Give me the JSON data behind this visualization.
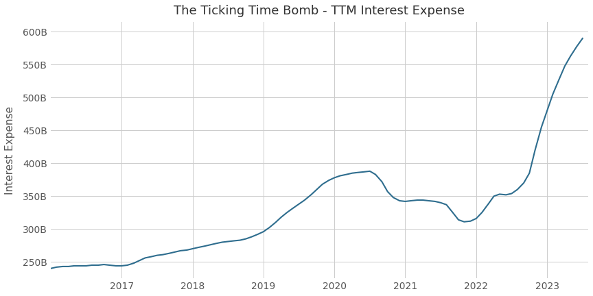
{
  "title": "The Ticking Time Bomb - TTM Interest Expense",
  "ylabel": "Interest Expense",
  "line_color": "#2e6d8e",
  "background_color": "#ffffff",
  "grid_color": "#cccccc",
  "ylim": [
    225000000000,
    615000000000
  ],
  "yticks": [
    250000000000,
    300000000000,
    350000000000,
    400000000000,
    450000000000,
    500000000000,
    550000000000,
    600000000000
  ],
  "x_values": [
    2016.0,
    2016.08,
    2016.17,
    2016.25,
    2016.33,
    2016.42,
    2016.5,
    2016.58,
    2016.67,
    2016.75,
    2016.83,
    2016.92,
    2017.0,
    2017.08,
    2017.17,
    2017.25,
    2017.33,
    2017.42,
    2017.5,
    2017.58,
    2017.67,
    2017.75,
    2017.83,
    2017.92,
    2018.0,
    2018.08,
    2018.17,
    2018.25,
    2018.33,
    2018.42,
    2018.5,
    2018.58,
    2018.67,
    2018.75,
    2018.83,
    2018.92,
    2019.0,
    2019.08,
    2019.17,
    2019.25,
    2019.33,
    2019.42,
    2019.5,
    2019.58,
    2019.67,
    2019.75,
    2019.83,
    2019.92,
    2020.0,
    2020.08,
    2020.17,
    2020.25,
    2020.33,
    2020.42,
    2020.5,
    2020.58,
    2020.67,
    2020.75,
    2020.83,
    2020.92,
    2021.0,
    2021.08,
    2021.17,
    2021.25,
    2021.33,
    2021.42,
    2021.5,
    2021.58,
    2021.67,
    2021.75,
    2021.83,
    2021.92,
    2022.0,
    2022.08,
    2022.17,
    2022.25,
    2022.33,
    2022.42,
    2022.5,
    2022.58,
    2022.67,
    2022.75,
    2022.83,
    2022.92,
    2023.0,
    2023.08,
    2023.17,
    2023.25,
    2023.33,
    2023.42,
    2023.5
  ],
  "y_values": [
    240000000000,
    242000000000,
    243000000000,
    243000000000,
    244000000000,
    244000000000,
    244000000000,
    245000000000,
    245000000000,
    246000000000,
    245000000000,
    244000000000,
    244000000000,
    245000000000,
    248000000000,
    252000000000,
    256000000000,
    258000000000,
    260000000000,
    261000000000,
    263000000000,
    265000000000,
    267000000000,
    268000000000,
    270000000000,
    272000000000,
    274000000000,
    276000000000,
    278000000000,
    280000000000,
    281000000000,
    282000000000,
    283000000000,
    285000000000,
    288000000000,
    292000000000,
    296000000000,
    302000000000,
    310000000000,
    318000000000,
    325000000000,
    332000000000,
    338000000000,
    344000000000,
    352000000000,
    360000000000,
    368000000000,
    374000000000,
    378000000000,
    381000000000,
    383000000000,
    385000000000,
    386000000000,
    387000000000,
    388000000000,
    383000000000,
    372000000000,
    357000000000,
    348000000000,
    343000000000,
    342000000000,
    343000000000,
    344000000000,
    344000000000,
    343000000000,
    342000000000,
    340000000000,
    337000000000,
    325000000000,
    314000000000,
    311000000000,
    312000000000,
    316000000000,
    325000000000,
    338000000000,
    350000000000,
    353000000000,
    352000000000,
    354000000000,
    360000000000,
    370000000000,
    385000000000,
    420000000000,
    455000000000,
    480000000000,
    505000000000,
    528000000000,
    548000000000,
    563000000000,
    578000000000,
    590000000000
  ],
  "xticks": [
    2017.0,
    2018.0,
    2019.0,
    2020.0,
    2021.0,
    2022.0,
    2023.0
  ],
  "xlim": [
    2016.0,
    2023.58
  ]
}
